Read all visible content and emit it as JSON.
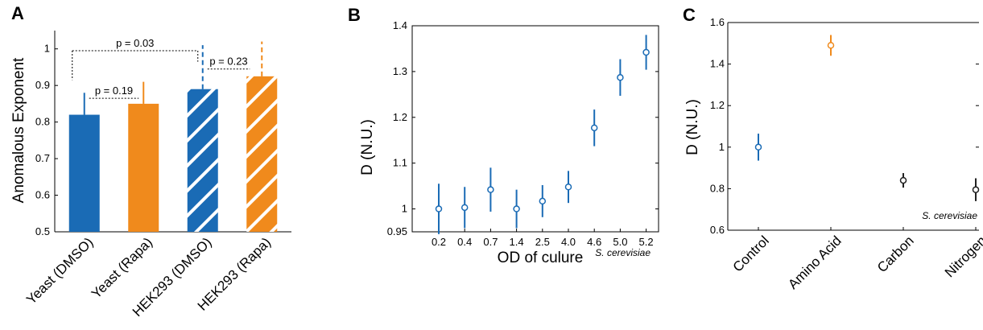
{
  "panels": [
    {
      "letter": "A"
    },
    {
      "letter": "B"
    },
    {
      "letter": "C"
    }
  ],
  "colors": {
    "blue": "#1a6bb5",
    "orange": "#f08a1c",
    "black": "#222222"
  },
  "chart_data": [
    {
      "id": "A",
      "type": "bar",
      "ylabel": "Anomalous Exponent",
      "ylim": [
        0.5,
        1.05
      ],
      "yticks": [
        "0.5",
        "0.6",
        "0.7",
        "0.8",
        "0.9",
        "1"
      ],
      "categories": [
        "Yeast (DMSO)",
        "Yeast (Rapa)",
        "HEK293 (DMSO)",
        "HEK293 (Rapa)"
      ],
      "values": [
        0.82,
        0.85,
        0.89,
        0.925
      ],
      "errors": [
        0.06,
        0.06,
        0.12,
        0.095
      ],
      "colors": [
        "blue",
        "orange",
        "blue",
        "orange"
      ],
      "hatched": [
        false,
        false,
        true,
        true
      ],
      "comparisons": [
        {
          "label": "p = 0.19",
          "from": 0,
          "to": 1
        },
        {
          "label": "p = 0.03",
          "from": 0,
          "to": 2
        },
        {
          "label": "p = 0.23",
          "from": 2,
          "to": 3
        }
      ],
      "grid": false
    },
    {
      "id": "B",
      "type": "scatter",
      "xlabel": "OD of culure",
      "ylabel": "D (N.U.)",
      "ylim": [
        0.95,
        1.4
      ],
      "yticks": [
        "0.95",
        "1",
        "1.1",
        "1.2",
        "1.3",
        "1.4"
      ],
      "categories": [
        "0.2",
        "0.4",
        "0.7",
        "1.4",
        "2.5",
        "4.0",
        "4.6",
        "5.0",
        "5.2"
      ],
      "values": [
        1.0,
        1.003,
        1.042,
        1.0,
        1.017,
        1.048,
        1.177,
        1.287,
        1.342
      ],
      "errors": [
        0.055,
        0.045,
        0.048,
        0.042,
        0.035,
        0.035,
        0.04,
        0.04,
        0.038
      ],
      "color": "blue",
      "annotation": "S. cerevisiae",
      "grid": false
    },
    {
      "id": "C",
      "type": "scatter",
      "ylabel": "D (N.U.)",
      "ylim": [
        0.6,
        1.6
      ],
      "yticks": [
        "0.6",
        "0.8",
        "1",
        "1.2",
        "1.4",
        "1.6"
      ],
      "categories": [
        "Control",
        "Amino Acid",
        "Carbon",
        "Nitrogen"
      ],
      "values": [
        1.0,
        1.49,
        0.84,
        0.795
      ],
      "errors": [
        0.065,
        0.05,
        0.035,
        0.055
      ],
      "colors": [
        "blue",
        "orange",
        "black",
        "black"
      ],
      "annotation": "S. cerevisiae",
      "grid": false
    }
  ]
}
